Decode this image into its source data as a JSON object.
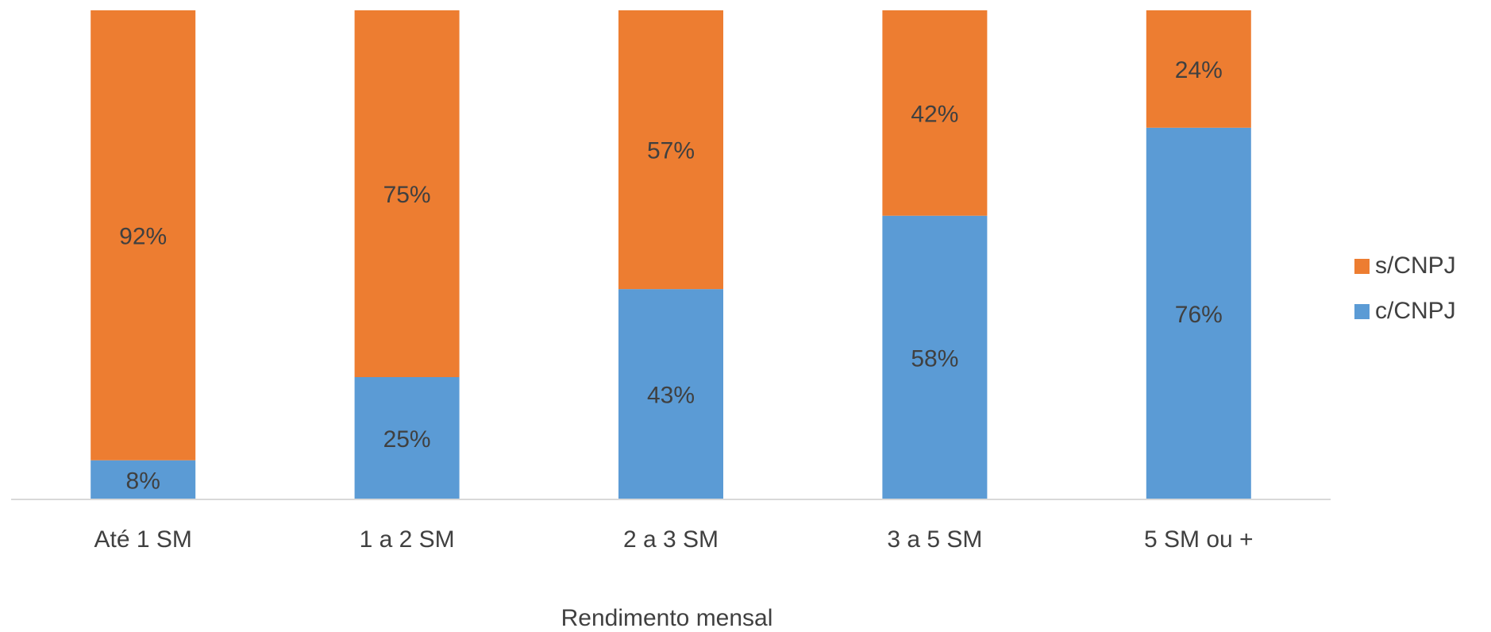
{
  "chart_data": {
    "type": "bar",
    "stacked": true,
    "percent_stacked": true,
    "categories": [
      "Até 1 SM",
      "1 a 2 SM",
      "2 a 3 SM",
      "3 a 5 SM",
      "5 SM ou +"
    ],
    "series": [
      {
        "name": "c/CNPJ",
        "color": "#5b9bd5",
        "values": [
          8,
          25,
          43,
          58,
          76
        ],
        "labels": [
          "8%",
          "25%",
          "43%",
          "58%",
          "76%"
        ]
      },
      {
        "name": "s/CNPJ",
        "color": "#ed7d31",
        "values": [
          92,
          75,
          57,
          42,
          24
        ],
        "labels": [
          "92%",
          "75%",
          "57%",
          "42%",
          "24%"
        ]
      }
    ],
    "title": "",
    "xlabel": "Rendimento mensal",
    "ylabel": "",
    "ylim": [
      0,
      100
    ],
    "grid": false,
    "legend": {
      "position": "right",
      "entries": [
        "s/CNPJ",
        "c/CNPJ"
      ]
    }
  }
}
